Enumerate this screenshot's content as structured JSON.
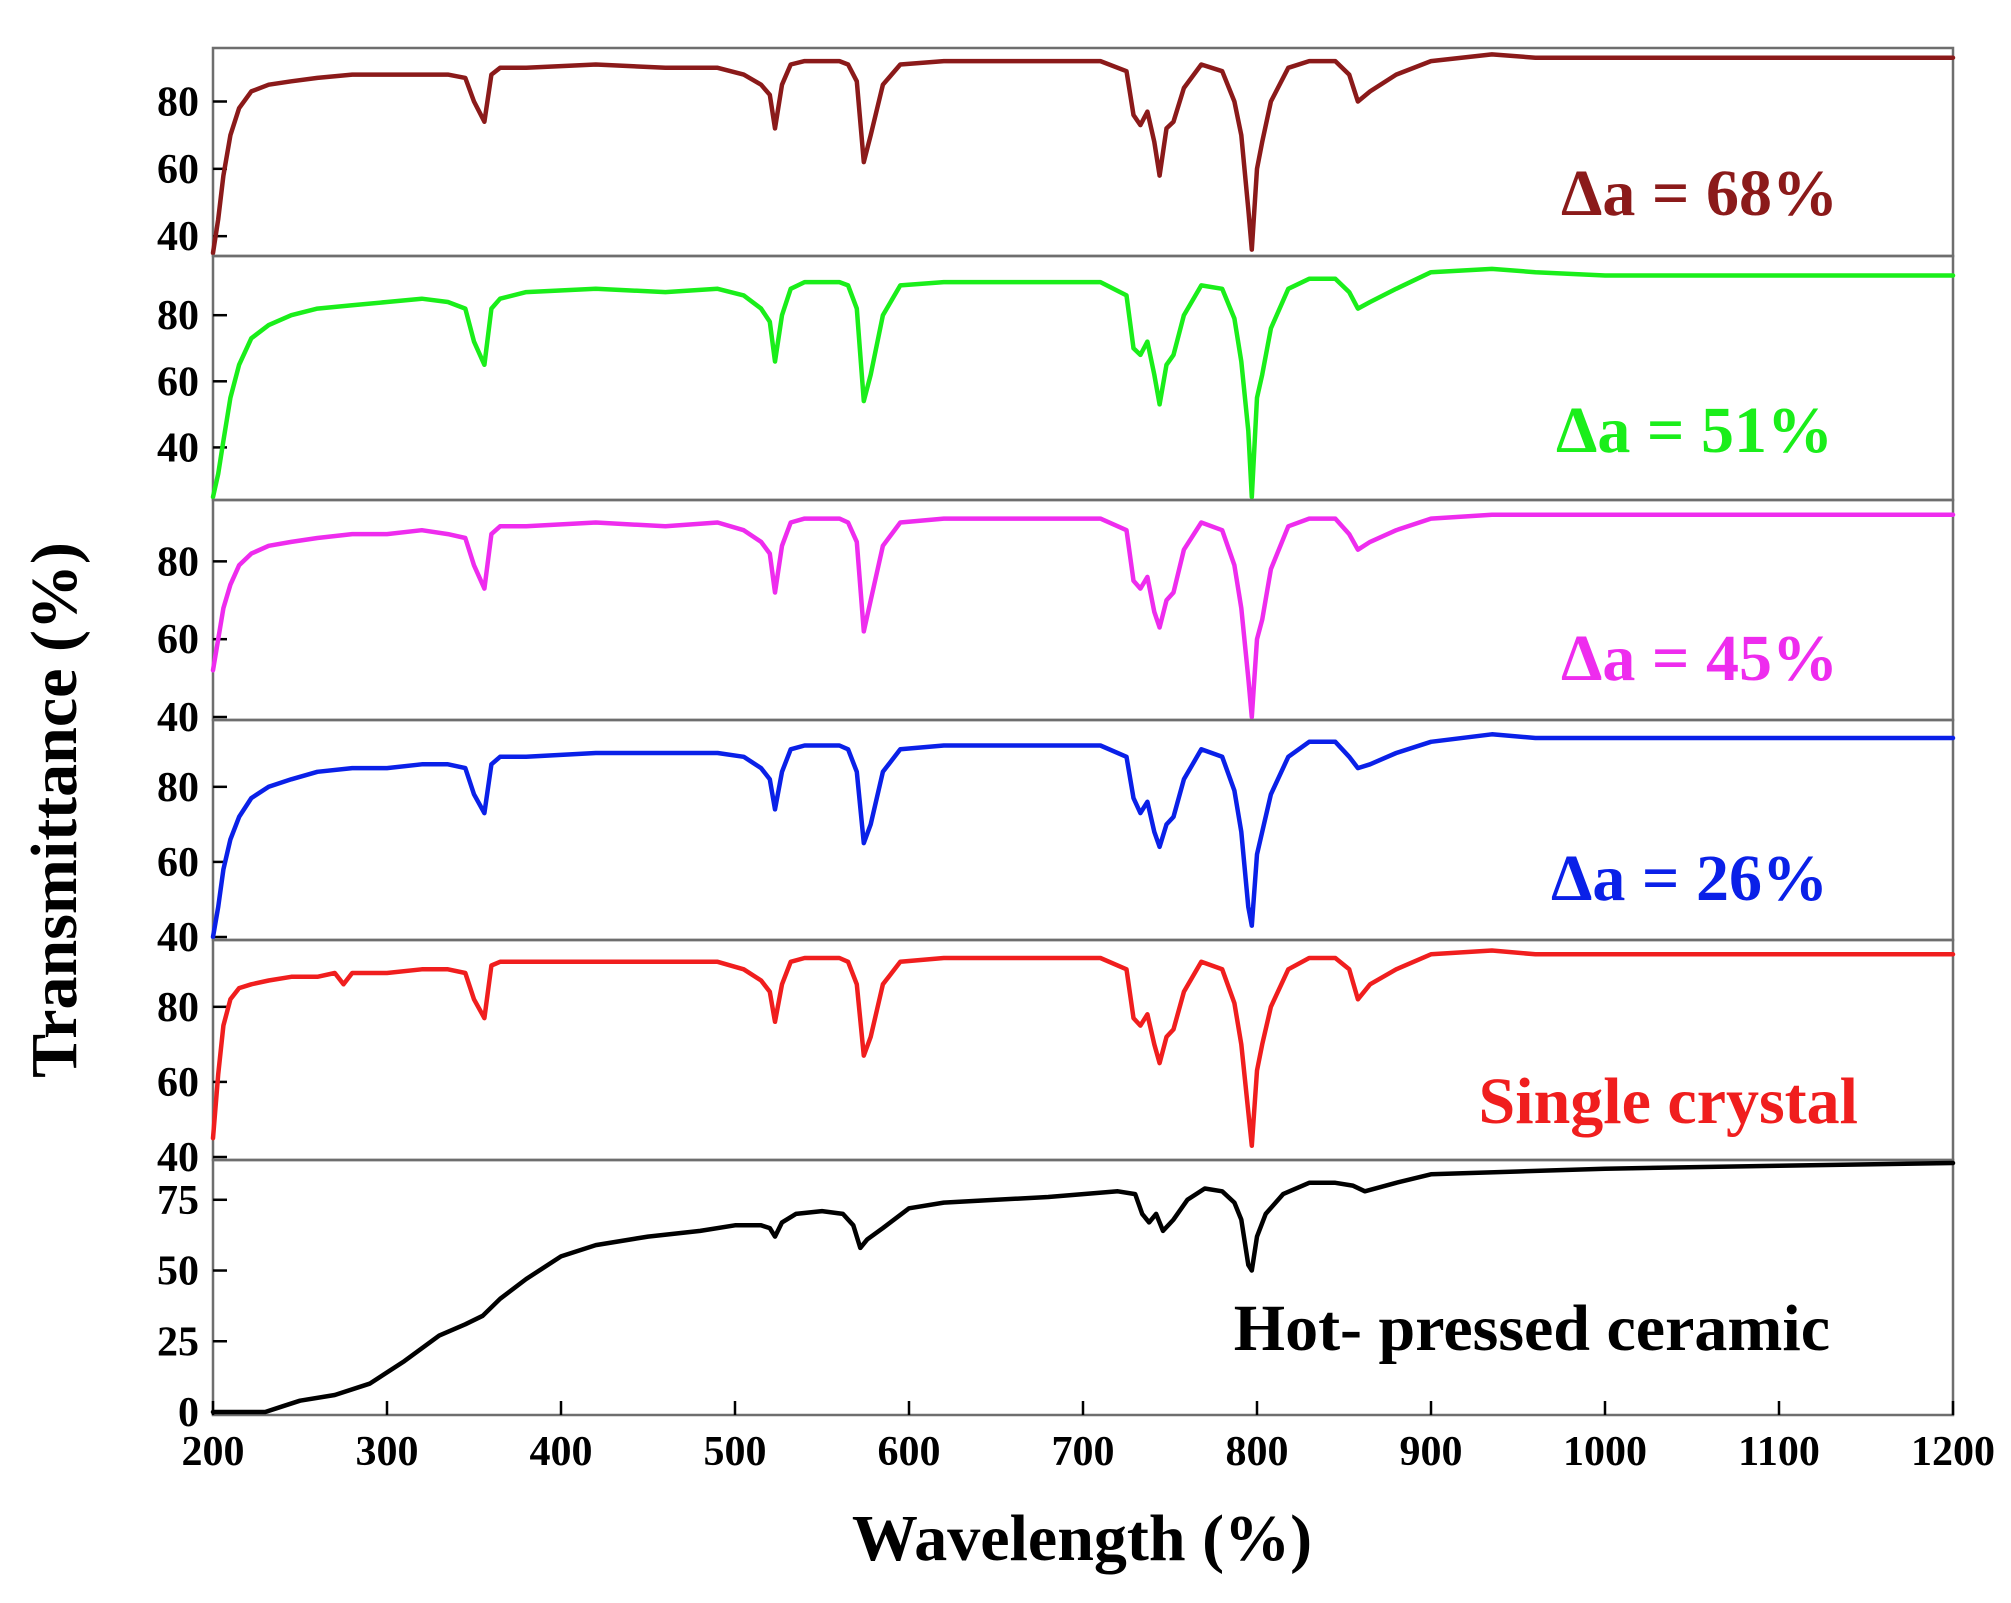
{
  "chart_data": {
    "type": "line",
    "layout": "stacked",
    "xlabel": "Wavelength (%)",
    "ylabel": "Transmittance (%)",
    "xlim": [
      200,
      1200
    ],
    "xticks": [
      200,
      300,
      400,
      500,
      600,
      700,
      800,
      900,
      1000,
      1100,
      1200
    ],
    "grid": false,
    "panels": [
      {
        "label": "Δa = 68%",
        "color": "#8b1a1a",
        "ylim": [
          35,
          95
        ],
        "yticks": [
          40,
          60,
          80
        ],
        "series": {
          "x": [
            200,
            203,
            206,
            210,
            215,
            222,
            232,
            245,
            260,
            280,
            300,
            320,
            335,
            345,
            350,
            356,
            360,
            365,
            380,
            420,
            460,
            490,
            505,
            515,
            520,
            523,
            527,
            532,
            540,
            560,
            565,
            570,
            574,
            578,
            585,
            595,
            620,
            660,
            690,
            710,
            725,
            729,
            733,
            737,
            741,
            744,
            748,
            752,
            758,
            768,
            780,
            787,
            791,
            795,
            797,
            800,
            803,
            808,
            818,
            830,
            845,
            853,
            858,
            865,
            880,
            900,
            935,
            960,
            1000,
            1200
          ],
          "y": [
            35,
            45,
            58,
            70,
            78,
            83,
            85,
            86,
            87,
            88,
            88,
            88,
            88,
            87,
            80,
            74,
            88,
            90,
            90,
            91,
            90,
            90,
            88,
            85,
            82,
            72,
            85,
            91,
            92,
            92,
            91,
            86,
            62,
            70,
            85,
            91,
            92,
            92,
            92,
            92,
            89,
            76,
            73,
            77,
            68,
            58,
            72,
            74,
            84,
            91,
            89,
            80,
            70,
            48,
            36,
            60,
            68,
            80,
            90,
            92,
            92,
            88,
            80,
            83,
            88,
            92,
            94,
            93,
            93,
            93
          ]
        }
      },
      {
        "label": "Δa = 51%",
        "color": "#1aee1a",
        "ylim": [
          25,
          97
        ],
        "yticks": [
          40,
          60,
          80
        ],
        "series": {
          "x": [
            200,
            203,
            206,
            210,
            215,
            222,
            232,
            245,
            260,
            280,
            300,
            320,
            335,
            345,
            350,
            356,
            360,
            365,
            380,
            420,
            460,
            490,
            505,
            515,
            520,
            523,
            527,
            532,
            540,
            560,
            565,
            570,
            574,
            578,
            585,
            595,
            620,
            660,
            690,
            710,
            725,
            729,
            733,
            737,
            741,
            744,
            748,
            752,
            758,
            768,
            780,
            787,
            791,
            795,
            797,
            800,
            803,
            808,
            818,
            830,
            845,
            853,
            858,
            865,
            880,
            900,
            935,
            960,
            1000,
            1200
          ],
          "y": [
            25,
            32,
            42,
            55,
            65,
            73,
            77,
            80,
            82,
            83,
            84,
            85,
            84,
            82,
            72,
            65,
            82,
            85,
            87,
            88,
            87,
            88,
            86,
            82,
            78,
            66,
            80,
            88,
            90,
            90,
            89,
            82,
            54,
            62,
            80,
            89,
            90,
            90,
            90,
            90,
            86,
            70,
            68,
            72,
            62,
            53,
            65,
            68,
            80,
            89,
            88,
            79,
            66,
            45,
            25,
            55,
            62,
            76,
            88,
            91,
            91,
            87,
            82,
            84,
            88,
            93,
            94,
            93,
            92,
            92
          ]
        }
      },
      {
        "label": "Δa = 45%",
        "color": "#ee2cee",
        "ylim": [
          40,
          95
        ],
        "yticks": [
          40,
          60,
          80
        ],
        "series": {
          "x": [
            200,
            203,
            206,
            210,
            215,
            222,
            232,
            245,
            260,
            280,
            300,
            320,
            335,
            345,
            350,
            356,
            360,
            365,
            380,
            420,
            460,
            490,
            505,
            515,
            520,
            523,
            527,
            532,
            540,
            560,
            565,
            570,
            574,
            578,
            585,
            595,
            620,
            660,
            690,
            710,
            725,
            729,
            733,
            737,
            741,
            744,
            748,
            752,
            758,
            768,
            780,
            787,
            791,
            795,
            797,
            800,
            803,
            808,
            818,
            830,
            845,
            853,
            858,
            865,
            880,
            900,
            935,
            960,
            1000,
            1200
          ],
          "y": [
            52,
            60,
            68,
            74,
            79,
            82,
            84,
            85,
            86,
            87,
            87,
            88,
            87,
            86,
            79,
            73,
            87,
            89,
            89,
            90,
            89,
            90,
            88,
            85,
            82,
            72,
            84,
            90,
            91,
            91,
            90,
            85,
            62,
            70,
            84,
            90,
            91,
            91,
            91,
            91,
            88,
            75,
            73,
            76,
            67,
            63,
            70,
            72,
            83,
            90,
            88,
            79,
            68,
            50,
            40,
            60,
            65,
            78,
            89,
            91,
            91,
            87,
            83,
            85,
            88,
            91,
            92,
            92,
            92,
            92
          ]
        }
      },
      {
        "label": "Δa = 26%",
        "color": "#0a20e8",
        "ylim": [
          40,
          97
        ],
        "yticks": [
          40,
          60,
          80
        ],
        "series": {
          "x": [
            200,
            203,
            206,
            210,
            215,
            222,
            232,
            245,
            260,
            280,
            300,
            320,
            335,
            345,
            350,
            356,
            360,
            365,
            380,
            420,
            460,
            490,
            505,
            515,
            520,
            523,
            527,
            532,
            540,
            560,
            565,
            570,
            574,
            578,
            585,
            595,
            620,
            660,
            690,
            710,
            725,
            729,
            733,
            737,
            741,
            744,
            748,
            752,
            758,
            768,
            780,
            787,
            791,
            795,
            797,
            800,
            803,
            808,
            818,
            830,
            845,
            853,
            858,
            865,
            880,
            900,
            935,
            960,
            1000,
            1200
          ],
          "y": [
            40,
            48,
            58,
            66,
            72,
            77,
            80,
            82,
            84,
            85,
            85,
            86,
            86,
            85,
            78,
            73,
            86,
            88,
            88,
            89,
            89,
            89,
            88,
            85,
            82,
            74,
            84,
            90,
            91,
            91,
            90,
            84,
            65,
            70,
            84,
            90,
            91,
            91,
            91,
            91,
            88,
            77,
            73,
            76,
            68,
            64,
            70,
            72,
            82,
            90,
            88,
            79,
            68,
            48,
            43,
            62,
            68,
            78,
            88,
            92,
            92,
            88,
            85,
            86,
            89,
            92,
            94,
            93,
            93,
            93
          ]
        }
      },
      {
        "label": "Single crystal",
        "color": "#f01e1e",
        "ylim": [
          40,
          97
        ],
        "yticks": [
          40,
          60,
          80
        ],
        "series": {
          "x": [
            200,
            203,
            206,
            210,
            215,
            222,
            232,
            245,
            260,
            270,
            275,
            280,
            300,
            320,
            335,
            345,
            350,
            356,
            360,
            365,
            380,
            420,
            460,
            490,
            505,
            515,
            520,
            523,
            527,
            532,
            540,
            560,
            565,
            570,
            574,
            578,
            585,
            595,
            620,
            660,
            690,
            710,
            725,
            729,
            733,
            737,
            741,
            744,
            748,
            752,
            758,
            768,
            780,
            787,
            791,
            795,
            797,
            800,
            803,
            808,
            818,
            830,
            845,
            853,
            858,
            865,
            880,
            900,
            935,
            960,
            1000,
            1200
          ],
          "y": [
            45,
            62,
            75,
            82,
            85,
            86,
            87,
            88,
            88,
            89,
            86,
            89,
            89,
            90,
            90,
            89,
            82,
            77,
            91,
            92,
            92,
            92,
            92,
            92,
            90,
            87,
            84,
            76,
            86,
            92,
            93,
            93,
            92,
            86,
            67,
            72,
            86,
            92,
            93,
            93,
            93,
            93,
            90,
            77,
            75,
            78,
            70,
            65,
            72,
            74,
            84,
            92,
            90,
            81,
            70,
            52,
            43,
            63,
            70,
            80,
            90,
            93,
            93,
            90,
            82,
            86,
            90,
            94,
            95,
            94,
            94,
            94
          ]
        }
      },
      {
        "label": "Hot- pressed ceramic",
        "color": "#000000",
        "ylim": [
          0,
          88
        ],
        "yticks": [
          0,
          25,
          50,
          75
        ],
        "series": {
          "x": [
            200,
            230,
            240,
            250,
            270,
            290,
            310,
            330,
            345,
            355,
            365,
            380,
            400,
            420,
            450,
            480,
            500,
            515,
            520,
            523,
            527,
            535,
            550,
            562,
            568,
            572,
            576,
            585,
            600,
            620,
            650,
            680,
            700,
            720,
            730,
            734,
            738,
            742,
            746,
            752,
            760,
            770,
            780,
            787,
            791,
            795,
            797,
            800,
            805,
            815,
            830,
            845,
            855,
            862,
            880,
            900,
            950,
            1000,
            1100,
            1200
          ],
          "y": [
            0,
            0,
            2,
            4,
            6,
            10,
            18,
            27,
            31,
            34,
            40,
            47,
            55,
            59,
            62,
            64,
            66,
            66,
            65,
            62,
            67,
            70,
            71,
            70,
            66,
            58,
            61,
            65,
            72,
            74,
            75,
            76,
            77,
            78,
            77,
            70,
            67,
            70,
            64,
            68,
            75,
            79,
            78,
            74,
            68,
            52,
            50,
            62,
            70,
            77,
            81,
            81,
            80,
            78,
            81,
            84,
            85,
            86,
            87,
            88
          ]
        }
      }
    ]
  }
}
